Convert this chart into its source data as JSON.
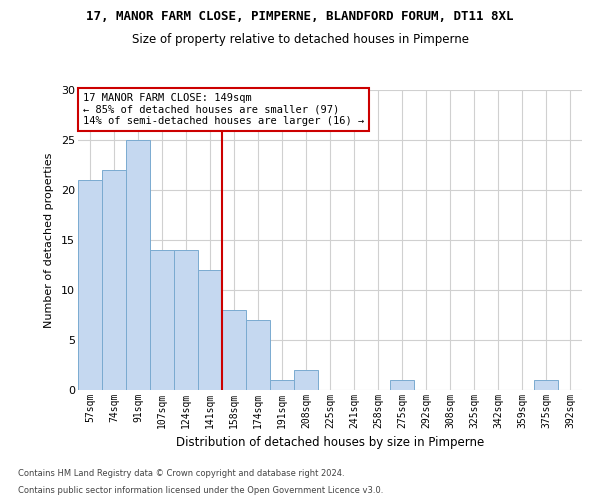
{
  "title": "17, MANOR FARM CLOSE, PIMPERNE, BLANDFORD FORUM, DT11 8XL",
  "subtitle": "Size of property relative to detached houses in Pimperne",
  "xlabel": "Distribution of detached houses by size in Pimperne",
  "ylabel": "Number of detached properties",
  "bar_color": "#c5d8f0",
  "bar_edge_color": "#7aaad0",
  "categories": [
    "57sqm",
    "74sqm",
    "91sqm",
    "107sqm",
    "124sqm",
    "141sqm",
    "158sqm",
    "174sqm",
    "191sqm",
    "208sqm",
    "225sqm",
    "241sqm",
    "258sqm",
    "275sqm",
    "292sqm",
    "308sqm",
    "325sqm",
    "342sqm",
    "359sqm",
    "375sqm",
    "392sqm"
  ],
  "values": [
    21,
    22,
    25,
    14,
    14,
    12,
    8,
    7,
    1,
    2,
    0,
    0,
    0,
    1,
    0,
    0,
    0,
    0,
    0,
    1,
    0
  ],
  "ylim": [
    0,
    30
  ],
  "yticks": [
    0,
    5,
    10,
    15,
    20,
    25,
    30
  ],
  "vline_x": 5.5,
  "vline_color": "#cc0000",
  "annotation_text": "17 MANOR FARM CLOSE: 149sqm\n← 85% of detached houses are smaller (97)\n14% of semi-detached houses are larger (16) →",
  "annotation_box_color": "#ffffff",
  "annotation_box_edge": "#cc0000",
  "footer1": "Contains HM Land Registry data © Crown copyright and database right 2024.",
  "footer2": "Contains public sector information licensed under the Open Government Licence v3.0.",
  "background_color": "#ffffff",
  "grid_color": "#d0d0d0"
}
